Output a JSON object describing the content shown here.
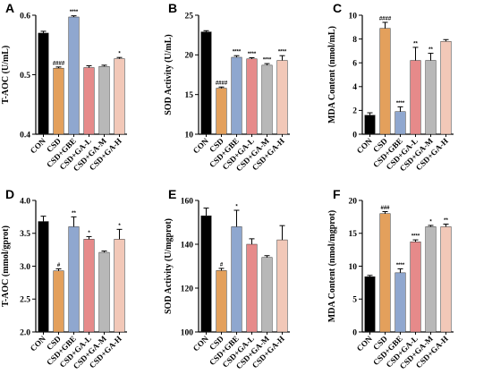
{
  "categories": [
    "CON",
    "CSD",
    "CSD+GBE",
    "CSD+GA-L",
    "CSD+GA-M",
    "CSD+GA-H"
  ],
  "bar_colors": [
    "#000000",
    "#e3a05c",
    "#8fa7cf",
    "#e68a8a",
    "#b8b8b8",
    "#f2c8b8"
  ],
  "chart_data": [
    {
      "panel": "A",
      "type": "bar",
      "ylabel": "T-AOC (U/mL)",
      "ylim": [
        0.4,
        0.6
      ],
      "yticks": [
        "0.4",
        "0.5",
        "0.6"
      ],
      "tick_values": [
        0.4,
        0.5,
        0.6
      ],
      "values": [
        0.57,
        0.511,
        0.597,
        0.512,
        0.514,
        0.527
      ],
      "errors": [
        0.003,
        0.002,
        0.002,
        0.003,
        0.002,
        0.002
      ],
      "significance": [
        "",
        "####",
        "****",
        "",
        "",
        "*"
      ]
    },
    {
      "panel": "B",
      "type": "bar",
      "ylabel": "SOD Activity (U/mL)",
      "ylim": [
        10,
        25
      ],
      "yticks": [
        "10",
        "15",
        "20",
        "25"
      ],
      "tick_values": [
        10,
        15,
        20,
        25
      ],
      "values": [
        22.9,
        15.8,
        19.7,
        19.5,
        18.7,
        19.3
      ],
      "errors": [
        0.15,
        0.15,
        0.2,
        0.15,
        0.2,
        0.6
      ],
      "significance": [
        "",
        "####",
        "****",
        "****",
        "****",
        "****"
      ]
    },
    {
      "panel": "C",
      "type": "bar",
      "ylabel": "MDA Content (nmol/mL)",
      "ylim": [
        0,
        10
      ],
      "yticks": [
        "0",
        "2",
        "4",
        "6",
        "8",
        "10"
      ],
      "tick_values": [
        0,
        2,
        4,
        6,
        8,
        10
      ],
      "values": [
        1.6,
        8.9,
        1.9,
        6.2,
        6.2,
        7.8
      ],
      "errors": [
        0.2,
        0.5,
        0.4,
        1.1,
        0.6,
        0.15
      ],
      "significance": [
        "",
        "####",
        "****",
        "**",
        "**",
        ""
      ]
    },
    {
      "panel": "D",
      "type": "bar",
      "ylabel": "T-AOC (mmol/gprot)",
      "ylim": [
        2.0,
        4.0
      ],
      "yticks": [
        "2.0",
        "2.5",
        "3.0",
        "3.5",
        "4.0"
      ],
      "tick_values": [
        2.0,
        2.5,
        3.0,
        3.5,
        4.0
      ],
      "values": [
        3.68,
        2.93,
        3.6,
        3.41,
        3.21,
        3.41
      ],
      "errors": [
        0.08,
        0.03,
        0.15,
        0.04,
        0.02,
        0.15
      ],
      "significance": [
        "",
        "#",
        "**",
        "*",
        "",
        "*"
      ]
    },
    {
      "panel": "E",
      "type": "bar",
      "ylabel": "SOD Activity (U/mgprot)",
      "ylim": [
        100,
        160
      ],
      "yticks": [
        "100",
        "120",
        "140",
        "160"
      ],
      "tick_values": [
        100,
        120,
        140,
        160
      ],
      "values": [
        153,
        128,
        148,
        140,
        134,
        142
      ],
      "errors": [
        3.5,
        1.0,
        7.5,
        2.5,
        0.8,
        6.5
      ],
      "significance": [
        "",
        "#",
        "*",
        "",
        "",
        ""
      ]
    },
    {
      "panel": "F",
      "type": "bar",
      "ylabel": "MDA Content (nmol/mgprot)",
      "ylim": [
        0,
        20
      ],
      "yticks": [
        "0",
        "5",
        "10",
        "15",
        "20"
      ],
      "tick_values": [
        0,
        5,
        10,
        15,
        20
      ],
      "values": [
        8.4,
        18.0,
        9.0,
        13.7,
        16.0,
        16.0
      ],
      "errors": [
        0.2,
        0.3,
        0.6,
        0.3,
        0.2,
        0.4
      ],
      "significance": [
        "",
        "###",
        "****",
        "****",
        "*",
        "**"
      ]
    }
  ]
}
